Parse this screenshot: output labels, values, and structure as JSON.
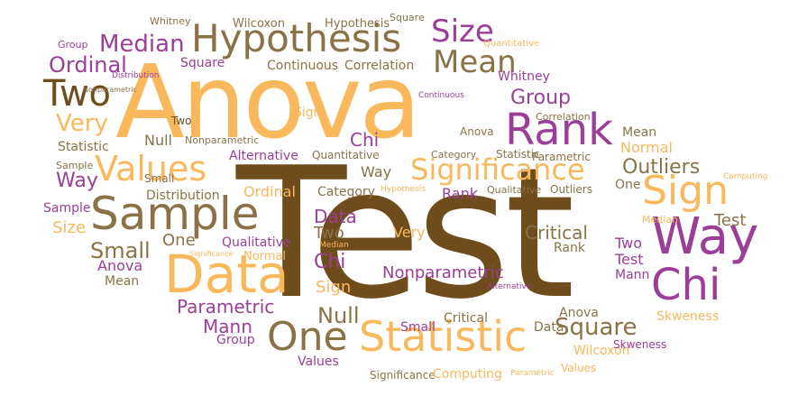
{
  "colors": {
    "brown": "#6f4c1b",
    "orange": "#f9b85b",
    "purple": "#9b3e98",
    "taupe": "#8a7246"
  },
  "words": [
    "Test",
    "Anova",
    "Hypothesis",
    "Statistic",
    "Sample",
    "Data",
    "Way",
    "Rank",
    "Chi",
    "Sign",
    "Values",
    "Two",
    "Significance",
    "One",
    "Size",
    "Mean",
    "Median",
    "Ordinal",
    "Very",
    "Group",
    "Null",
    "Square",
    "Outliers",
    "Small",
    "Mann",
    "Parametric",
    "Nonparametric",
    "Critical",
    "Whitney",
    "Wilcoxon",
    "Continuous",
    "Correlation",
    "Distribution",
    "Alternative",
    "Quantitative",
    "Qualitative",
    "Normal",
    "Skweness",
    "Category",
    "Computing"
  ]
}
